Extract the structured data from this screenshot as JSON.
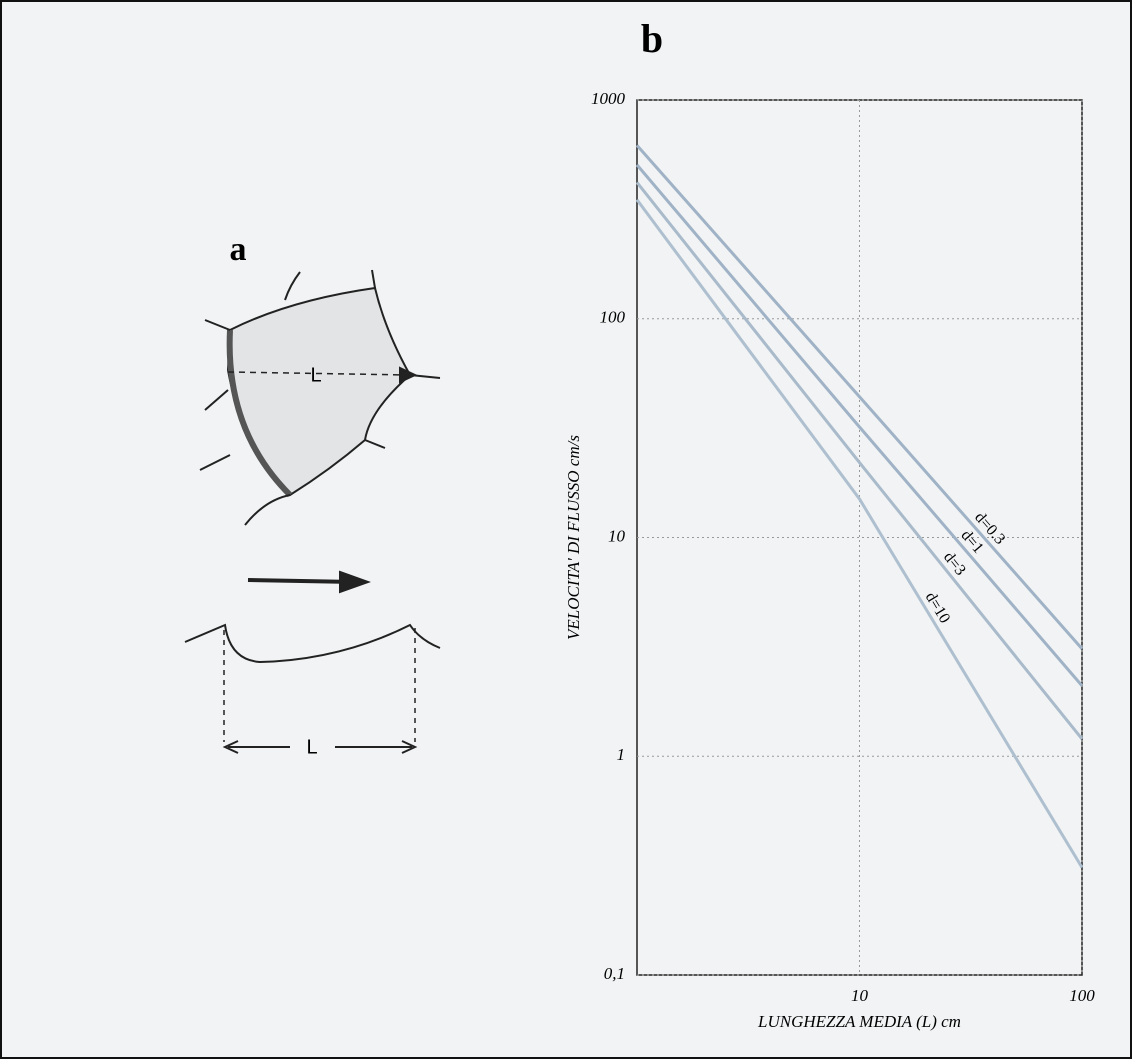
{
  "panels": {
    "a": "a",
    "b": "b"
  },
  "diagram": {
    "labels": [
      "L",
      "L"
    ]
  },
  "chart_data": {
    "type": "line",
    "xlabel": "LUNGHEZZA MEDIA (L) cm",
    "ylabel": "VELOCITA' DI FLUSSO cm/s",
    "x": [
      1,
      10,
      100
    ],
    "log_x": true,
    "log_y": true,
    "grid": true,
    "xlim": [
      1,
      100
    ],
    "xticks": [
      10,
      100
    ],
    "ylim": [
      0.1,
      1000
    ],
    "yticks": [
      {
        "value": 0.1,
        "label": "0,1"
      },
      1,
      10,
      100,
      1000
    ],
    "series": [
      {
        "name": "d=0.3",
        "color": "#9fb2c6",
        "values": [
          620,
          44,
          3.1
        ]
      },
      {
        "name": "d=1",
        "color": "#9fb2c6",
        "values": [
          505,
          32,
          2.1
        ]
      },
      {
        "name": "d=3",
        "color": "#a9bacb",
        "values": [
          420,
          22,
          1.2
        ]
      },
      {
        "name": "d=10",
        "color": "#aebfcf",
        "values": [
          350,
          15,
          0.31
        ]
      }
    ]
  }
}
